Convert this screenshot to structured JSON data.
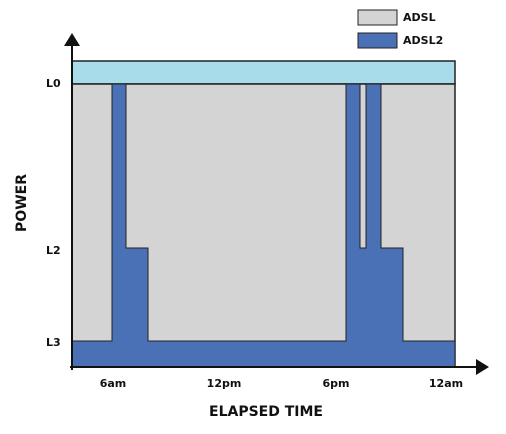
{
  "legend": {
    "items": [
      {
        "label": "ADSL"
      },
      {
        "label": "ADSL2"
      }
    ]
  },
  "y_axis": {
    "title": "POWER",
    "labels": [
      "L0",
      "L2",
      "L3"
    ]
  },
  "x_axis": {
    "title": "ELAPSED TIME",
    "labels": [
      "6am",
      "12pm",
      "6pm",
      "12am"
    ]
  }
}
